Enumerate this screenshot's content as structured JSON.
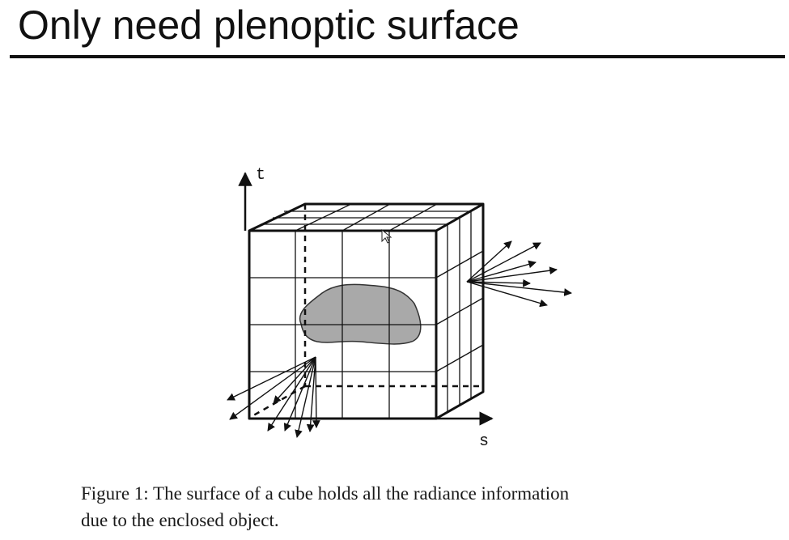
{
  "slide": {
    "title": "Only need plenoptic surface"
  },
  "figure": {
    "axis_t_label": "t",
    "axis_s_label": "s",
    "caption_line1": "Figure 1:  The surface of a cube holds all the radiance information",
    "caption_line2": "due to the enclosed object.",
    "blob_color": "#a9a9a9",
    "line_color": "#111111"
  }
}
